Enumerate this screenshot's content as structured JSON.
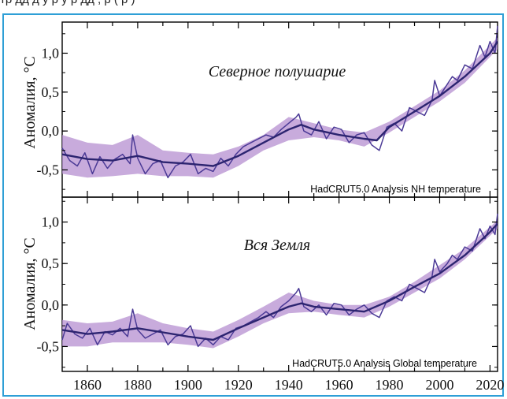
{
  "header_fragment": "тр дд д у р у р дд ,            р  (   р   )",
  "colors": {
    "frame": "#2e9fd6",
    "line": "#4b3a96",
    "band": "#b58fd0",
    "smooth": "#2c2470"
  },
  "chart_data": [
    {
      "type": "line",
      "title": "Северное полушарие",
      "ylabel": "Аномалия, °C",
      "source": "HadCRUT5.0 Analysis NH temperature",
      "xlim": [
        1850,
        2023
      ],
      "ylim": [
        -0.85,
        1.4
      ],
      "yticks": [
        "1,0",
        "0,5",
        "0,0",
        "-0,5"
      ],
      "yticks_values": [
        1.0,
        0.5,
        0.0,
        -0.5
      ],
      "xticks": [
        1860,
        1880,
        1900,
        1920,
        1940,
        1960,
        1980,
        2000,
        2020
      ],
      "grid": false,
      "series": [
        {
          "kind": "annual",
          "x": [
            1850,
            1853,
            1856,
            1859,
            1862,
            1865,
            1868,
            1871,
            1874,
            1877,
            1878,
            1880,
            1883,
            1886,
            1889,
            1892,
            1895,
            1898,
            1901,
            1904,
            1907,
            1910,
            1913,
            1916,
            1919,
            1922,
            1925,
            1928,
            1931,
            1934,
            1937,
            1940,
            1943,
            1944,
            1946,
            1949,
            1952,
            1955,
            1958,
            1961,
            1964,
            1967,
            1970,
            1973,
            1976,
            1979,
            1982,
            1985,
            1988,
            1991,
            1994,
            1997,
            1998,
            2000,
            2003,
            2005,
            2007,
            2010,
            2013,
            2016,
            2018,
            2020,
            2022,
            2023
          ],
          "y": [
            -0.22,
            -0.38,
            -0.45,
            -0.28,
            -0.55,
            -0.33,
            -0.48,
            -0.36,
            -0.3,
            -0.42,
            -0.05,
            -0.35,
            -0.55,
            -0.42,
            -0.38,
            -0.6,
            -0.45,
            -0.4,
            -0.3,
            -0.55,
            -0.48,
            -0.52,
            -0.35,
            -0.45,
            -0.3,
            -0.2,
            -0.15,
            -0.1,
            -0.05,
            -0.08,
            0.02,
            0.1,
            0.18,
            0.22,
            0.0,
            -0.05,
            0.12,
            -0.1,
            0.05,
            0.02,
            -0.15,
            -0.05,
            -0.02,
            -0.18,
            -0.25,
            0.05,
            0.1,
            0.0,
            0.3,
            0.25,
            0.2,
            0.4,
            0.65,
            0.45,
            0.6,
            0.7,
            0.65,
            0.85,
            0.8,
            1.1,
            0.95,
            1.15,
            1.0,
            1.35
          ]
        },
        {
          "kind": "smoothed",
          "x": [
            1850,
            1860,
            1870,
            1880,
            1890,
            1900,
            1910,
            1920,
            1930,
            1940,
            1945,
            1950,
            1960,
            1970,
            1975,
            1980,
            1990,
            2000,
            2010,
            2020,
            2023
          ],
          "y": [
            -0.3,
            -0.36,
            -0.38,
            -0.32,
            -0.4,
            -0.42,
            -0.45,
            -0.32,
            -0.15,
            0.02,
            0.08,
            0.02,
            -0.05,
            -0.1,
            -0.12,
            0.05,
            0.25,
            0.45,
            0.7,
            1.0,
            1.15
          ]
        }
      ],
      "uncertainty": {
        "x": [
          1850,
          1860,
          1870,
          1880,
          1890,
          1900,
          1910,
          1920,
          1930,
          1940,
          1950,
          1960,
          1970,
          1980,
          1990,
          2000,
          2010,
          2023
        ],
        "upper": [
          -0.05,
          -0.15,
          -0.18,
          -0.05,
          -0.25,
          -0.28,
          -0.3,
          -0.2,
          -0.05,
          0.18,
          0.1,
          0.02,
          -0.02,
          0.12,
          0.32,
          0.52,
          0.78,
          1.2
        ],
        "lower": [
          -0.55,
          -0.6,
          -0.58,
          -0.55,
          -0.58,
          -0.58,
          -0.6,
          -0.45,
          -0.25,
          -0.12,
          -0.08,
          -0.12,
          -0.2,
          -0.02,
          0.18,
          0.38,
          0.62,
          1.05
        ]
      }
    },
    {
      "type": "line",
      "title": "Вся Земля",
      "ylabel": "Аномалия, °C",
      "source": "HadCRUT5.0 Analysis Global temperature",
      "xlim": [
        1850,
        2023
      ],
      "ylim": [
        -0.8,
        1.3
      ],
      "yticks": [
        "1,0",
        "0,5",
        "0,0",
        "-0,5"
      ],
      "yticks_values": [
        1.0,
        0.5,
        0.0,
        -0.5
      ],
      "xticks": [
        1860,
        1880,
        1900,
        1920,
        1940,
        1960,
        1980,
        2000,
        2020
      ],
      "xtick_labels": [
        "1860",
        "1880",
        "1900",
        "1920",
        "1940",
        "1960",
        "1980",
        "2000",
        "2020"
      ],
      "grid": false,
      "series": [
        {
          "kind": "annual",
          "x": [
            1850,
            1852,
            1855,
            1858,
            1861,
            1864,
            1867,
            1870,
            1873,
            1876,
            1878,
            1880,
            1883,
            1886,
            1889,
            1892,
            1895,
            1898,
            1901,
            1904,
            1907,
            1910,
            1913,
            1916,
            1919,
            1922,
            1925,
            1928,
            1931,
            1934,
            1937,
            1940,
            1943,
            1944,
            1946,
            1949,
            1952,
            1955,
            1958,
            1961,
            1964,
            1967,
            1970,
            1973,
            1976,
            1979,
            1982,
            1985,
            1988,
            1991,
            1994,
            1997,
            1998,
            2000,
            2003,
            2005,
            2007,
            2010,
            2013,
            2016,
            2018,
            2020,
            2022,
            2023
          ],
          "y": [
            -0.42,
            -0.22,
            -0.35,
            -0.4,
            -0.28,
            -0.48,
            -0.32,
            -0.36,
            -0.28,
            -0.38,
            -0.05,
            -0.3,
            -0.4,
            -0.35,
            -0.3,
            -0.48,
            -0.38,
            -0.35,
            -0.25,
            -0.5,
            -0.4,
            -0.48,
            -0.38,
            -0.42,
            -0.28,
            -0.25,
            -0.2,
            -0.15,
            -0.08,
            -0.15,
            -0.02,
            0.05,
            0.15,
            0.2,
            -0.02,
            -0.08,
            0.0,
            -0.12,
            0.02,
            0.0,
            -0.12,
            -0.05,
            0.0,
            -0.1,
            -0.15,
            0.05,
            0.1,
            0.05,
            0.25,
            0.2,
            0.15,
            0.35,
            0.55,
            0.4,
            0.5,
            0.6,
            0.55,
            0.7,
            0.65,
            0.92,
            0.8,
            0.95,
            0.85,
            1.1
          ]
        },
        {
          "kind": "smoothed",
          "x": [
            1850,
            1860,
            1870,
            1880,
            1890,
            1900,
            1910,
            1920,
            1930,
            1940,
            1945,
            1950,
            1960,
            1970,
            1980,
            1990,
            2000,
            2010,
            2020,
            2023
          ],
          "y": [
            -0.3,
            -0.35,
            -0.32,
            -0.28,
            -0.33,
            -0.38,
            -0.42,
            -0.28,
            -0.15,
            -0.02,
            0.02,
            -0.02,
            -0.05,
            -0.08,
            0.05,
            0.22,
            0.38,
            0.6,
            0.88,
            0.98
          ]
        }
      ],
      "uncertainty": {
        "x": [
          1850,
          1860,
          1870,
          1880,
          1890,
          1900,
          1910,
          1920,
          1930,
          1940,
          1950,
          1960,
          1970,
          1980,
          1990,
          2000,
          2010,
          2023
        ],
        "upper": [
          -0.18,
          -0.22,
          -0.2,
          -0.1,
          -0.22,
          -0.28,
          -0.32,
          -0.18,
          -0.02,
          0.15,
          0.05,
          0.0,
          0.0,
          0.1,
          0.28,
          0.48,
          0.68,
          1.02
        ],
        "lower": [
          -0.5,
          -0.5,
          -0.45,
          -0.45,
          -0.45,
          -0.48,
          -0.52,
          -0.38,
          -0.22,
          -0.1,
          -0.08,
          -0.12,
          -0.15,
          -0.02,
          0.15,
          0.32,
          0.55,
          0.92
        ]
      }
    }
  ]
}
